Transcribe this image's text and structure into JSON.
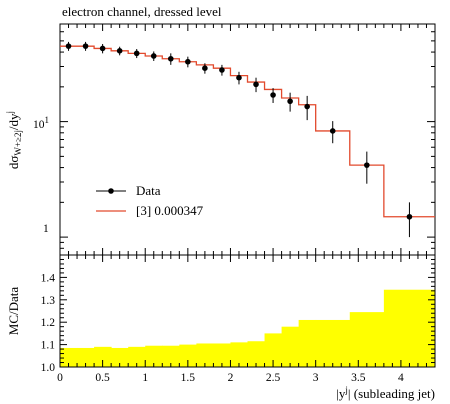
{
  "chart_data": [
    {
      "type": "line",
      "title": "electron channel, dressed level",
      "ylabel": "dσ_{W+≥2j}/dy^j",
      "xlim": [
        0,
        4.4
      ],
      "ylim": [
        0.7,
        70
      ],
      "yscale": "log",
      "ytick_labels": [
        "1",
        "10^1"
      ],
      "grid": false,
      "legend_position": "lower-left",
      "series": [
        {
          "name": "Data",
          "style": "points-with-errorbars",
          "color": "#000000",
          "x": [
            0.1,
            0.3,
            0.5,
            0.7,
            0.9,
            1.1,
            1.3,
            1.5,
            1.7,
            1.9,
            2.1,
            2.3,
            2.5,
            2.7,
            2.9,
            3.2,
            3.6,
            4.1
          ],
          "y": [
            45,
            45,
            43,
            41,
            39,
            37,
            35,
            33,
            29,
            28,
            24,
            21,
            17,
            15,
            13.5,
            8.3,
            4.2,
            1.5
          ],
          "yerr": [
            4,
            4,
            4,
            3.5,
            3.5,
            3.5,
            4,
            3.5,
            3,
            3,
            3,
            3,
            2.5,
            2.8,
            3.2,
            1.8,
            1.3,
            0.5
          ]
        },
        {
          "name": "[3] 0.000347",
          "style": "step",
          "color": "#e24a2d",
          "bin_edges": [
            0,
            0.2,
            0.4,
            0.6,
            0.8,
            1.0,
            1.2,
            1.4,
            1.6,
            1.8,
            2.0,
            2.2,
            2.4,
            2.6,
            2.8,
            3.0,
            3.4,
            3.8,
            4.4
          ],
          "values": [
            45,
            45,
            43,
            41,
            39,
            37,
            35,
            33,
            31,
            29,
            25,
            22,
            19,
            16,
            14,
            8.3,
            4.2,
            1.5
          ]
        }
      ]
    },
    {
      "type": "area",
      "ylabel": "MC/Data",
      "xlabel": "|y^j| (subleading jet)",
      "xlim": [
        0,
        4.4
      ],
      "ylim": [
        1.0,
        1.5
      ],
      "x_ticks": [
        0,
        0.5,
        1,
        1.5,
        2,
        2.5,
        3,
        3.5,
        4
      ],
      "x_tick_labels": [
        "0",
        "0.5",
        "1",
        "1.5",
        "2",
        "2.5",
        "3",
        "3.5",
        "4"
      ],
      "y_ticks": [
        1.0,
        1.1,
        1.2,
        1.3,
        1.4
      ],
      "y_tick_labels": [
        "1.0",
        "1.1",
        "1.2",
        "1.3",
        "1.4"
      ],
      "grid": false,
      "series": [
        {
          "name": "uncertainty band",
          "style": "filled-step",
          "color": "#ffff00",
          "bin_edges": [
            0,
            0.2,
            0.4,
            0.6,
            0.8,
            1.0,
            1.2,
            1.4,
            1.6,
            1.8,
            2.0,
            2.2,
            2.4,
            2.6,
            2.8,
            3.0,
            3.4,
            3.8,
            4.4
          ],
          "values": [
            1.085,
            1.085,
            1.09,
            1.085,
            1.09,
            1.095,
            1.095,
            1.1,
            1.105,
            1.105,
            1.11,
            1.115,
            1.15,
            1.18,
            1.21,
            1.21,
            1.245,
            1.345
          ]
        }
      ]
    }
  ],
  "labels": {
    "title": "electron channel, dressed level",
    "ylabel_main_prefix": "dσ",
    "ylabel_main_sub": "W+≥2j",
    "ylabel_main_mid": "/dy",
    "ylabel_main_sup": "j",
    "ylabel_ratio": "MC/Data",
    "xlabel_prefix": "|y",
    "xlabel_sup": "j",
    "xlabel_suffix": "| (subleading jet)",
    "ytick_main_1": "1",
    "ytick_main_10": "10",
    "ytick_main_10_exp": "1",
    "legend_data": "Data",
    "legend_mc": "[3] 0.000347"
  }
}
